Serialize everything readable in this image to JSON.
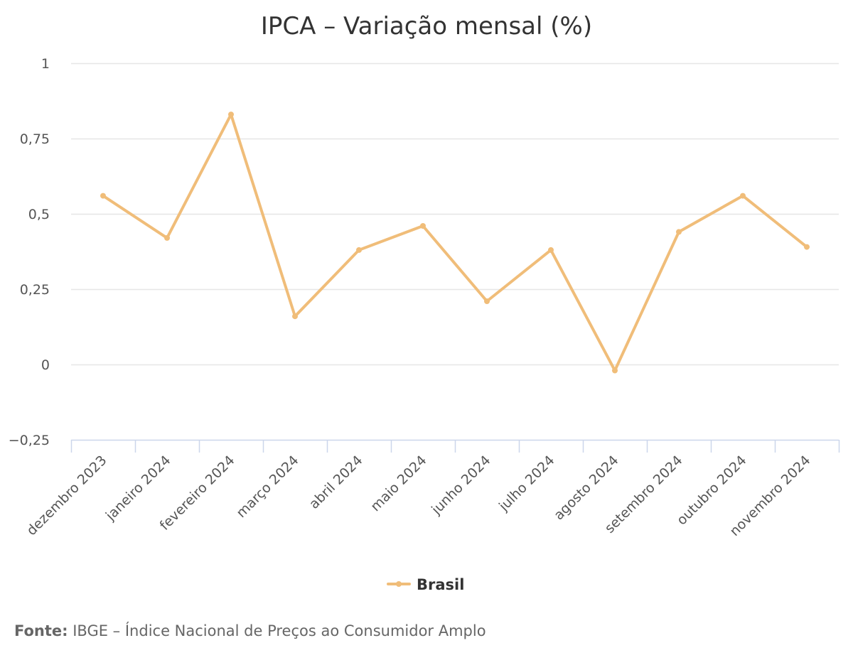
{
  "chart_data": {
    "type": "line",
    "title": "IPCA – Variação mensal (%)",
    "xlabel": "",
    "ylabel": "",
    "categories": [
      "dezembro 2023",
      "janeiro 2024",
      "fevereiro 2024",
      "março 2024",
      "abril 2024",
      "maio 2024",
      "junho 2024",
      "julho 2024",
      "agosto 2024",
      "setembro 2024",
      "outubro 2024",
      "novembro 2024"
    ],
    "series": [
      {
        "name": "Brasil",
        "color": "#f0bd79",
        "values": [
          0.56,
          0.42,
          0.83,
          0.16,
          0.38,
          0.46,
          0.21,
          0.38,
          -0.02,
          0.44,
          0.56,
          0.39
        ]
      }
    ],
    "ylim": [
      -0.25,
      1
    ],
    "y_ticks": [
      {
        "value": 1,
        "label": "1"
      },
      {
        "value": 0.75,
        "label": "0,75"
      },
      {
        "value": 0.5,
        "label": "0,5"
      },
      {
        "value": 0.25,
        "label": "0,25"
      },
      {
        "value": 0,
        "label": "0"
      },
      {
        "value": -0.25,
        "label": "−0,25"
      }
    ],
    "grid": true,
    "legend_position": "bottom-center",
    "gridline_color": "#e6e6e6",
    "axis_color": "#ccd6eb"
  },
  "source": {
    "label": "Fonte:",
    "text": " IBGE – Índice Nacional de Preços ao Consumidor Amplo"
  }
}
